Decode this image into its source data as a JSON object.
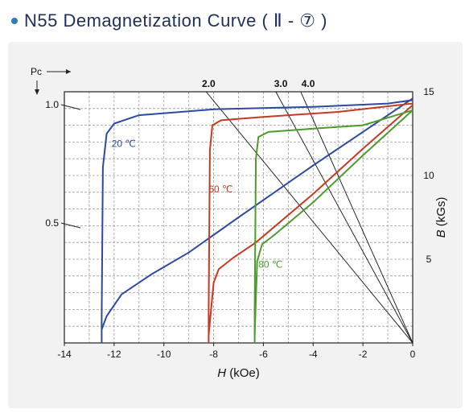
{
  "header": {
    "title": "N55 Demagnetization Curve ( Ⅱ - ⑦ )"
  },
  "chart_data": {
    "type": "line",
    "title": "N55 Demagnetization Curve ( Ⅱ - ⑦ )",
    "xlabel": "H (kOe)",
    "ylabel_right": "B (kGs)",
    "pc_label": "Pc",
    "xlim": [
      -14,
      0
    ],
    "ylim": [
      0,
      15
    ],
    "x_ticks": [
      "-14",
      "-12",
      "-10",
      "-8",
      "-6",
      "-4",
      "-2",
      "0"
    ],
    "y_ticks_right": [
      "15",
      "10",
      "5"
    ],
    "pc_ticks": [
      "1.0",
      "0.5"
    ],
    "pc_values": [
      1.0,
      0.5
    ],
    "load_lines": [
      "2.0",
      "3.0",
      "4.0"
    ],
    "grid": true,
    "series": [
      {
        "name": "20 ℃",
        "color": "#2c4aa0",
        "J": [
          [
            -12.5,
            0
          ],
          [
            -12.5,
            1.5
          ],
          [
            -12.45,
            10.5
          ],
          [
            -12.3,
            12.5
          ],
          [
            -12.0,
            13.1
          ],
          [
            -11.0,
            13.6
          ],
          [
            -8.0,
            13.95
          ],
          [
            -4.0,
            14.1
          ],
          [
            -1.0,
            14.3
          ],
          [
            0,
            14.5
          ]
        ],
        "B": [
          [
            -12.5,
            0.8
          ],
          [
            -12.3,
            1.6
          ],
          [
            -11.7,
            2.9
          ],
          [
            -10.5,
            4.1
          ],
          [
            -9.0,
            5.4
          ],
          [
            -7.0,
            7.5
          ],
          [
            -4.0,
            10.6
          ],
          [
            -2.0,
            12.6
          ],
          [
            0,
            14.6
          ]
        ]
      },
      {
        "name": "60 ℃",
        "color": "#c23b22",
        "J": [
          [
            -8.2,
            0
          ],
          [
            -8.2,
            2.0
          ],
          [
            -8.15,
            11.5
          ],
          [
            -8.05,
            13.0
          ],
          [
            -7.7,
            13.3
          ],
          [
            -6.0,
            13.5
          ],
          [
            -3.0,
            13.8
          ],
          [
            0,
            14.3
          ]
        ],
        "B": [
          [
            -8.2,
            0.5
          ],
          [
            -8.0,
            3.6
          ],
          [
            -7.8,
            4.4
          ],
          [
            -7.2,
            5.1
          ],
          [
            -6.3,
            6.0
          ],
          [
            -4.0,
            8.9
          ],
          [
            -2.0,
            11.6
          ],
          [
            0,
            14.2
          ]
        ]
      },
      {
        "name": "80 ℃",
        "color": "#4e9a2e",
        "J": [
          [
            -6.35,
            0
          ],
          [
            -6.35,
            2.0
          ],
          [
            -6.3,
            11.0
          ],
          [
            -6.2,
            12.3
          ],
          [
            -5.8,
            12.6
          ],
          [
            -4.0,
            12.8
          ],
          [
            -2.0,
            13.0
          ],
          [
            0,
            13.9
          ]
        ],
        "B": [
          [
            -6.35,
            0.5
          ],
          [
            -6.25,
            4.9
          ],
          [
            -6.05,
            5.9
          ],
          [
            -5.6,
            6.4
          ],
          [
            -4.0,
            8.4
          ],
          [
            -2.0,
            11.2
          ],
          [
            0,
            13.9
          ]
        ]
      }
    ]
  }
}
